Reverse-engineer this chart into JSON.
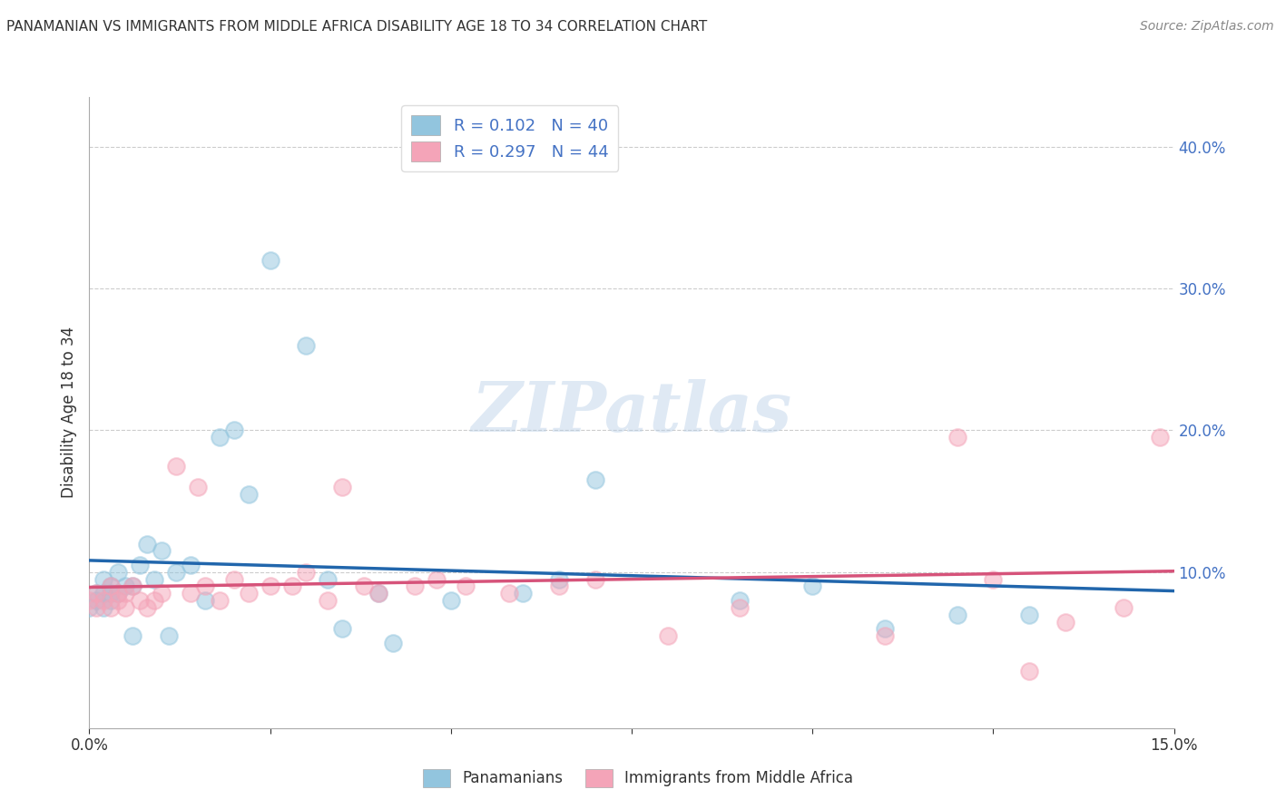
{
  "title": "PANAMANIAN VS IMMIGRANTS FROM MIDDLE AFRICA DISABILITY AGE 18 TO 34 CORRELATION CHART",
  "source": "Source: ZipAtlas.com",
  "ylabel": "Disability Age 18 to 34",
  "legend_labels": [
    "Panamanians",
    "Immigrants from Middle Africa"
  ],
  "r_values": [
    0.102,
    0.297
  ],
  "n_values": [
    40,
    44
  ],
  "blue_color": "#92c5de",
  "pink_color": "#f4a4b8",
  "line_blue": "#2166ac",
  "line_pink": "#d6537a",
  "xmin": 0.0,
  "xmax": 0.15,
  "ymin": -0.01,
  "ymax": 0.435,
  "right_yticks": [
    0.1,
    0.2,
    0.3,
    0.4
  ],
  "right_yticklabels": [
    "10.0%",
    "20.0%",
    "30.0%",
    "40.0%"
  ],
  "grid_yticks": [
    0.1,
    0.2,
    0.3,
    0.4
  ],
  "xticks": [
    0.0,
    0.025,
    0.05,
    0.075,
    0.1,
    0.125,
    0.15
  ],
  "xticklabels": [
    "0.0%",
    "",
    "",
    "",
    "",
    "",
    "15.0%"
  ],
  "watermark": "ZIPatlas",
  "panama_x": [
    0.0,
    0.001,
    0.001,
    0.002,
    0.002,
    0.002,
    0.003,
    0.003,
    0.003,
    0.004,
    0.004,
    0.005,
    0.006,
    0.006,
    0.007,
    0.008,
    0.009,
    0.01,
    0.011,
    0.012,
    0.014,
    0.016,
    0.018,
    0.02,
    0.022,
    0.025,
    0.03,
    0.033,
    0.035,
    0.04,
    0.042,
    0.05,
    0.06,
    0.065,
    0.07,
    0.09,
    0.1,
    0.11,
    0.12,
    0.13
  ],
  "panama_y": [
    0.075,
    0.08,
    0.085,
    0.075,
    0.085,
    0.095,
    0.08,
    0.09,
    0.085,
    0.085,
    0.1,
    0.09,
    0.09,
    0.055,
    0.105,
    0.12,
    0.095,
    0.115,
    0.055,
    0.1,
    0.105,
    0.08,
    0.195,
    0.2,
    0.155,
    0.32,
    0.26,
    0.095,
    0.06,
    0.085,
    0.05,
    0.08,
    0.085,
    0.095,
    0.165,
    0.08,
    0.09,
    0.06,
    0.07,
    0.07
  ],
  "africa_x": [
    0.0,
    0.001,
    0.001,
    0.002,
    0.003,
    0.003,
    0.004,
    0.004,
    0.005,
    0.005,
    0.006,
    0.007,
    0.008,
    0.009,
    0.01,
    0.012,
    0.014,
    0.015,
    0.016,
    0.018,
    0.02,
    0.022,
    0.025,
    0.028,
    0.03,
    0.033,
    0.035,
    0.038,
    0.04,
    0.045,
    0.048,
    0.052,
    0.058,
    0.065,
    0.07,
    0.08,
    0.09,
    0.11,
    0.12,
    0.125,
    0.13,
    0.135,
    0.143,
    0.148
  ],
  "africa_y": [
    0.08,
    0.075,
    0.085,
    0.08,
    0.075,
    0.09,
    0.08,
    0.085,
    0.075,
    0.085,
    0.09,
    0.08,
    0.075,
    0.08,
    0.085,
    0.175,
    0.085,
    0.16,
    0.09,
    0.08,
    0.095,
    0.085,
    0.09,
    0.09,
    0.1,
    0.08,
    0.16,
    0.09,
    0.085,
    0.09,
    0.095,
    0.09,
    0.085,
    0.09,
    0.095,
    0.055,
    0.075,
    0.055,
    0.195,
    0.095,
    0.03,
    0.065,
    0.075,
    0.195
  ]
}
